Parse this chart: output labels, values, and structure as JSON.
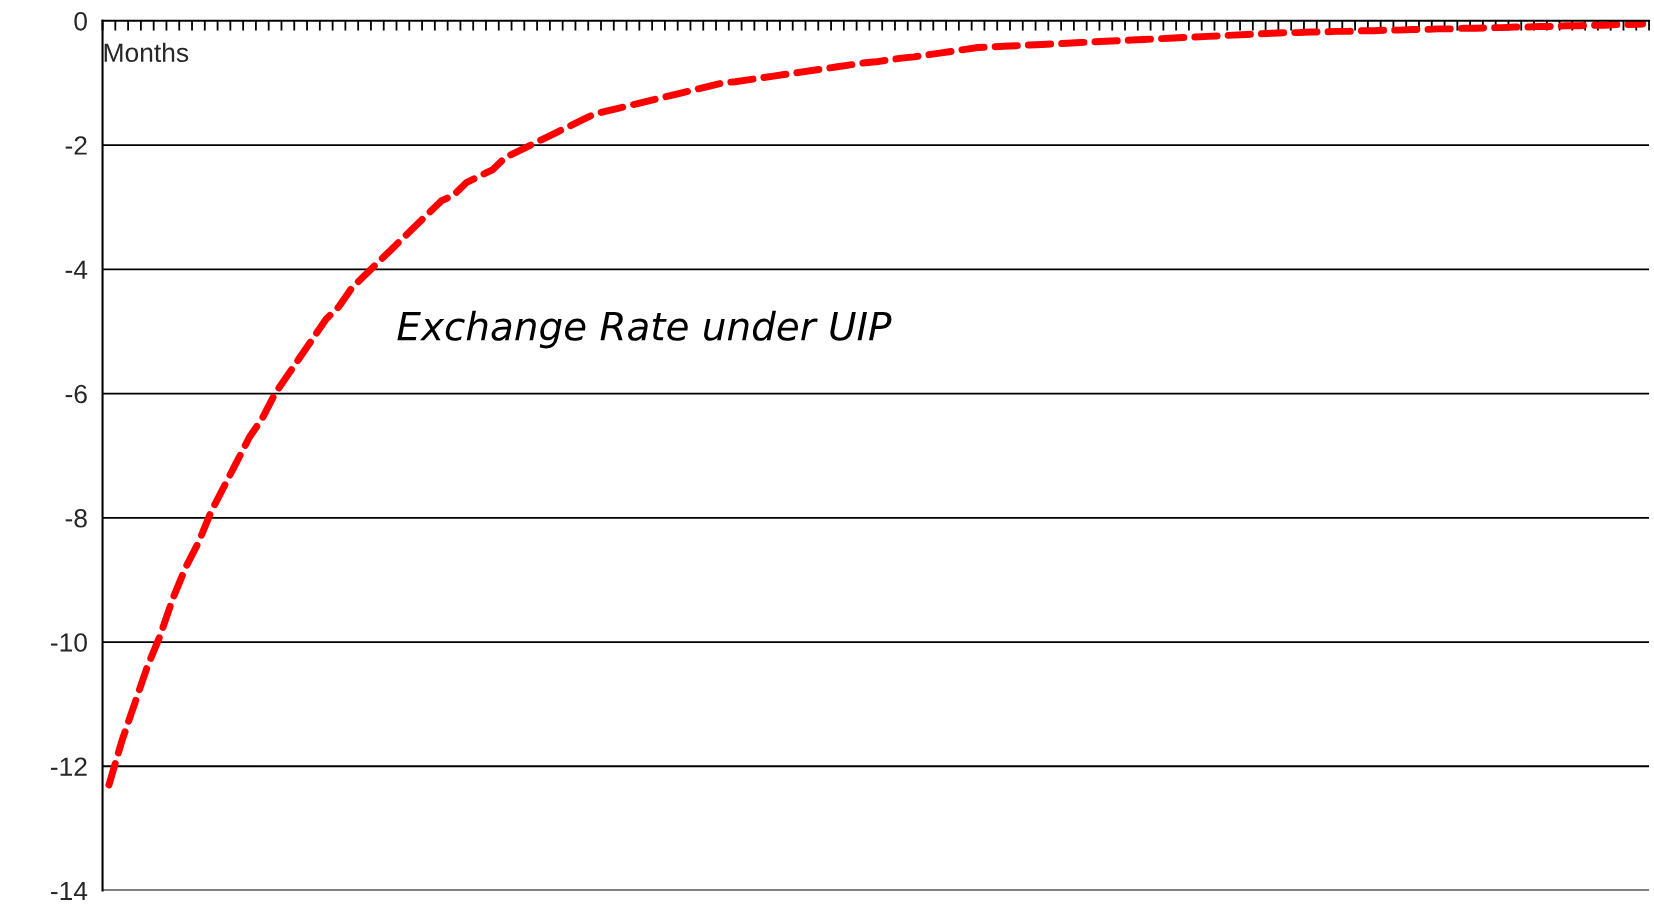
{
  "chart_data": {
    "type": "line",
    "xlabel": "Months",
    "categories": [
      null,
      null,
      null,
      null,
      null,
      null,
      null,
      null,
      null,
      null,
      null,
      null,
      null,
      null,
      null,
      null,
      null,
      null,
      null,
      null,
      null,
      null,
      null,
      null,
      null,
      null,
      null,
      null,
      null,
      null,
      null,
      null,
      null,
      null,
      null,
      null,
      null,
      null,
      null,
      null,
      null,
      null,
      null,
      null,
      null,
      null,
      null,
      null,
      null,
      null,
      null,
      null,
      null,
      null,
      null,
      null,
      null,
      null,
      null,
      null,
      null,
      null,
      null,
      null,
      null,
      null,
      null,
      null,
      null,
      null,
      null,
      null,
      null,
      null,
      null,
      null,
      null,
      null,
      null,
      null,
      null,
      null,
      null,
      null,
      null,
      null,
      null,
      null,
      null,
      null,
      null,
      null,
      null,
      null,
      null,
      null,
      null,
      null,
      null,
      null,
      null,
      null,
      null,
      null,
      null,
      null,
      null,
      null,
      null,
      null,
      null,
      null,
      null,
      null,
      null,
      null,
      null,
      null,
      null,
      null,
      null
    ],
    "series": [
      {
        "name": "Exchange Rate under UIP",
        "color": "#ff0000",
        "values": [
          -12.3,
          -11.6,
          -11.0,
          -10.4,
          -9.9,
          -9.3,
          -8.8,
          -8.4,
          -7.9,
          -7.5,
          -7.1,
          -6.7,
          -6.4,
          -6.0,
          -5.7,
          -5.4,
          -5.1,
          -4.8,
          -4.6,
          -4.3,
          -4.1,
          -3.9,
          -3.7,
          -3.5,
          -3.3,
          -3.1,
          -2.9,
          -2.8,
          -2.6,
          -2.5,
          -2.4,
          -2.2,
          -2.1,
          -2.0,
          -1.9,
          -1.8,
          -1.7,
          -1.6,
          -1.5,
          -1.45,
          -1.4,
          -1.35,
          -1.3,
          -1.25,
          -1.2,
          -1.15,
          -1.1,
          -1.05,
          -1.0,
          -0.98,
          -0.95,
          -0.92,
          -0.89,
          -0.86,
          -0.83,
          -0.8,
          -0.77,
          -0.74,
          -0.71,
          -0.68,
          -0.66,
          -0.63,
          -0.6,
          -0.58,
          -0.55,
          -0.52,
          -0.49,
          -0.46,
          -0.43,
          -0.42,
          -0.41,
          -0.4,
          -0.39,
          -0.38,
          -0.37,
          -0.36,
          -0.35,
          -0.34,
          -0.33,
          -0.32,
          -0.31,
          -0.3,
          -0.29,
          -0.28,
          -0.27,
          -0.26,
          -0.25,
          -0.24,
          -0.23,
          -0.22,
          -0.21,
          -0.2,
          -0.19,
          -0.19,
          -0.18,
          -0.18,
          -0.17,
          -0.17,
          -0.16,
          -0.16,
          -0.15,
          -0.15,
          -0.14,
          -0.14,
          -0.13,
          -0.13,
          -0.12,
          -0.12,
          -0.11,
          -0.11,
          -0.1,
          -0.1,
          -0.09,
          -0.09,
          -0.08,
          -0.08,
          -0.07,
          -0.07,
          -0.06,
          -0.06,
          -0.05
        ]
      }
    ],
    "ylim": [
      -14,
      0
    ],
    "yticks": [
      -14,
      -12,
      -10,
      -8,
      -6,
      -4,
      -2,
      0
    ],
    "grid": "y",
    "line_style": "dashed",
    "marker": "none",
    "tick_labels": "y",
    "legend": false
  }
}
